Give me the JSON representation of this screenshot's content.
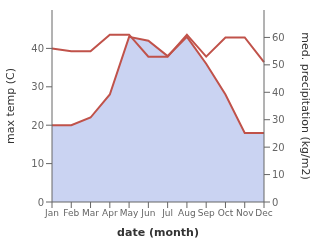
{
  "chart_data": {
    "type": "line",
    "categories": [
      "Jan",
      "Feb",
      "Mar",
      "Apr",
      "May",
      "Jun",
      "Jul",
      "Aug",
      "Sep",
      "Oct",
      "Nov",
      "Dec"
    ],
    "xlabel": "date (month)",
    "ylabel": "max temp (C)",
    "y2label": "med. precipitation (kg/m2)",
    "ylim": [
      0,
      50
    ],
    "yticks": [
      0,
      10,
      20,
      30,
      40
    ],
    "y2lim": [
      0,
      70
    ],
    "y2ticks": [
      0,
      10,
      20,
      30,
      40,
      50,
      60
    ],
    "grid": false,
    "series": [
      {
        "type": "area",
        "color": "#c0524a",
        "fill_color": "#b8c4ee",
        "values": [
          20,
          20,
          22,
          28,
          43,
          42,
          38,
          43,
          36,
          28,
          18,
          18
        ]
      },
      {
        "type": "line",
        "color": "#c0524a",
        "axis": "y2",
        "values": [
          56,
          55,
          55,
          61,
          61,
          53,
          53,
          61,
          53,
          60,
          60,
          51
        ]
      }
    ]
  }
}
